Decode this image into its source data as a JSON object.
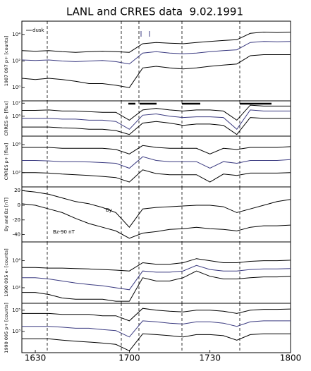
{
  "chart_data": [
    {
      "type": "line",
      "title": "LANL and CRRES data  9.02.1991",
      "ylabel": "1987 097 p+ [counts]",
      "log_scale": true,
      "annotations": [
        "dusk"
      ],
      "categories": [
        null,
        "1630",
        null,
        null,
        null,
        null,
        null,
        null,
        "1700",
        null,
        null,
        null,
        null,
        null,
        "1730",
        null,
        null,
        null,
        null,
        null,
        "1800"
      ],
      "ylim": [
        0.1,
        100000
      ],
      "yticks": [
        {
          "value": 10000,
          "label": "10⁴"
        },
        {
          "value": 100,
          "label": "10²"
        },
        {
          "value": 1,
          "label": "10⁰"
        }
      ],
      "series": [
        {
          "color": "#000000",
          "values": [
            600,
            550,
            600,
            500,
            450,
            500,
            550,
            500,
            450,
            2000,
            2500,
            2200,
            2000,
            2500,
            3000,
            3500,
            4000,
            12000,
            15000,
            14000,
            15000
          ]
        },
        {
          "color": "#3a3a80",
          "values": [
            120,
            110,
            120,
            100,
            90,
            100,
            110,
            90,
            60,
            400,
            500,
            400,
            350,
            400,
            500,
            600,
            700,
            2500,
            3000,
            2800,
            3000
          ]
        },
        {
          "color": "#000000",
          "values": [
            5,
            4,
            5,
            4,
            3,
            2,
            2,
            1.5,
            1,
            30,
            40,
            30,
            25,
            30,
            40,
            50,
            60,
            250,
            300,
            300,
            300
          ]
        }
      ]
    },
    {
      "type": "line",
      "ylabel": "CRRES e- [flux]",
      "log_scale": true,
      "categories": [
        null,
        "1630",
        null,
        null,
        null,
        null,
        null,
        null,
        "1700",
        null,
        null,
        null,
        null,
        null,
        "1730",
        null,
        null,
        null,
        null,
        null,
        "1800"
      ],
      "ylim": [
        30000,
        15000000
      ],
      "yticks": [
        {
          "value": 10000000,
          "label": "10⁷"
        },
        {
          "value": 1000000,
          "label": "10⁶"
        }
      ],
      "series": [
        {
          "color": "#000000",
          "values": [
            2800000,
            2800000,
            3000000,
            2500000,
            2500000,
            2200000,
            2000000,
            2000000,
            500000,
            3000000,
            4000000,
            3000000,
            2500000,
            3000000,
            3000000,
            2500000,
            500000,
            7000000,
            6000000,
            6000000,
            6000000
          ]
        },
        {
          "color": "#3a3a80",
          "values": [
            700000,
            700000,
            700000,
            600000,
            600000,
            500000,
            500000,
            400000,
            100000,
            1200000,
            1500000,
            1000000,
            800000,
            900000,
            900000,
            800000,
            100000,
            3000000,
            2500000,
            2500000,
            2500000
          ]
        },
        {
          "color": "#000000",
          "values": [
            150000,
            150000,
            150000,
            130000,
            120000,
            100000,
            100000,
            80000,
            40000,
            300000,
            400000,
            300000,
            200000,
            250000,
            250000,
            200000,
            40000,
            800000,
            700000,
            700000,
            700000
          ]
        }
      ]
    },
    {
      "type": "line",
      "ylabel": "CRRES p+ [flux]",
      "log_scale": true,
      "categories": [
        null,
        "1630",
        null,
        null,
        null,
        null,
        null,
        null,
        "1700",
        null,
        null,
        null,
        null,
        null,
        "1730",
        null,
        null,
        null,
        null,
        null,
        "1800"
      ],
      "ylim": [
        30,
        8000000
      ],
      "yticks": [
        {
          "value": 1000000,
          "label": "10⁶"
        },
        {
          "value": 1000,
          "label": "10³"
        }
      ],
      "series": [
        {
          "color": "#000000",
          "values": [
            500000,
            500000,
            500000,
            400000,
            400000,
            400000,
            400000,
            300000,
            100000,
            800000,
            500000,
            400000,
            400000,
            400000,
            100000,
            400000,
            300000,
            500000,
            500000,
            500000,
            600000
          ]
        },
        {
          "color": "#3a3a80",
          "values": [
            20000,
            20000,
            18000,
            15000,
            15000,
            14000,
            12000,
            10000,
            3000,
            50000,
            20000,
            15000,
            15000,
            15000,
            3000,
            15000,
            10000,
            20000,
            20000,
            20000,
            25000
          ]
        },
        {
          "color": "#000000",
          "values": [
            1000,
            1000,
            900,
            700,
            600,
            500,
            400,
            300,
            100,
            2000,
            800,
            600,
            600,
            600,
            100,
            700,
            500,
            900,
            900,
            900,
            1000
          ]
        }
      ]
    },
    {
      "type": "line",
      "ylabel": "By and Bz [nT]",
      "log_scale": false,
      "annotations": [
        "By",
        "Bz-90 nT"
      ],
      "categories": [
        null,
        "1630",
        null,
        null,
        null,
        null,
        null,
        null,
        "1700",
        null,
        null,
        null,
        null,
        null,
        "1730",
        null,
        null,
        null,
        null,
        null,
        "1800"
      ],
      "ylim": [
        -50,
        25
      ],
      "yticks": [
        20,
        0,
        -20,
        -40
      ],
      "series": [
        {
          "color": "#000000",
          "values": [
            20,
            18,
            15,
            10,
            5,
            2,
            -3,
            -10,
            -30,
            -5,
            -3,
            -2,
            -1,
            0,
            0,
            -2,
            -10,
            -5,
            0,
            5,
            8
          ]
        },
        {
          "color": "#000000",
          "values": [
            2,
            0,
            -5,
            -10,
            -18,
            -25,
            -30,
            -35,
            -45,
            -38,
            -36,
            -33,
            -32,
            -30,
            -32,
            -33,
            -35,
            -30,
            -28,
            -28,
            -27
          ]
        }
      ]
    },
    {
      "type": "line",
      "ylabel": "1990 095 e- [counts]",
      "log_scale": true,
      "categories": [
        null,
        "1630",
        null,
        null,
        null,
        null,
        null,
        null,
        "1700",
        null,
        null,
        null,
        null,
        null,
        "1730",
        null,
        null,
        null,
        null,
        null,
        "1800"
      ],
      "ylim": [
        0.5,
        600000000
      ],
      "yticks": [
        {
          "value": 1000000,
          "label": "10⁶"
        },
        {
          "value": 100,
          "label": "10²"
        }
      ],
      "series": [
        {
          "color": "#000000",
          "values": [
            100000,
            100000,
            80000,
            80000,
            70000,
            60000,
            50000,
            40000,
            30000,
            500000,
            300000,
            300000,
            500000,
            2000000,
            1000000,
            500000,
            500000,
            800000,
            1000000,
            1000000,
            1200000
          ]
        },
        {
          "color": "#3a3a80",
          "values": [
            3000,
            3000,
            2000,
            1000,
            500,
            300,
            200,
            100,
            50,
            30000,
            20000,
            20000,
            30000,
            200000,
            50000,
            30000,
            30000,
            50000,
            60000,
            60000,
            70000
          ]
        },
        {
          "color": "#000000",
          "values": [
            20,
            20,
            10,
            3,
            2,
            2,
            2,
            1,
            1,
            3000,
            1000,
            1000,
            3000,
            30000,
            5000,
            2000,
            2000,
            3000,
            4000,
            4000,
            5000
          ]
        }
      ]
    },
    {
      "type": "line",
      "ylabel": "1990 095 p+ [counts]",
      "log_scale": true,
      "categories": [
        null,
        "1630",
        null,
        null,
        null,
        null,
        null,
        null,
        "1700",
        null,
        null,
        null,
        null,
        null,
        "1730",
        null,
        null,
        null,
        null,
        null,
        "1800"
      ],
      "ylim": [
        10,
        450000
      ],
      "yticks": [
        {
          "value": 100000,
          "label": "10⁵"
        },
        {
          "value": 1000,
          "label": "10³"
        }
      ],
      "series": [
        {
          "color": "#000000",
          "values": [
            50000,
            50000,
            50000,
            40000,
            40000,
            40000,
            30000,
            30000,
            10000,
            150000,
            100000,
            80000,
            70000,
            100000,
            100000,
            80000,
            50000,
            100000,
            120000,
            120000,
            130000
          ]
        },
        {
          "color": "#3a3a80",
          "values": [
            3000,
            3000,
            3000,
            2500,
            2000,
            2000,
            1500,
            1200,
            300,
            10000,
            8000,
            6000,
            5000,
            8000,
            8000,
            6000,
            3000,
            8000,
            10000,
            10000,
            10000
          ]
        },
        {
          "color": "#000000",
          "values": [
            200,
            200,
            200,
            150,
            120,
            100,
            80,
            60,
            15,
            600,
            500,
            400,
            300,
            500,
            500,
            400,
            150,
            500,
            600,
            600,
            600
          ]
        }
      ]
    }
  ]
}
